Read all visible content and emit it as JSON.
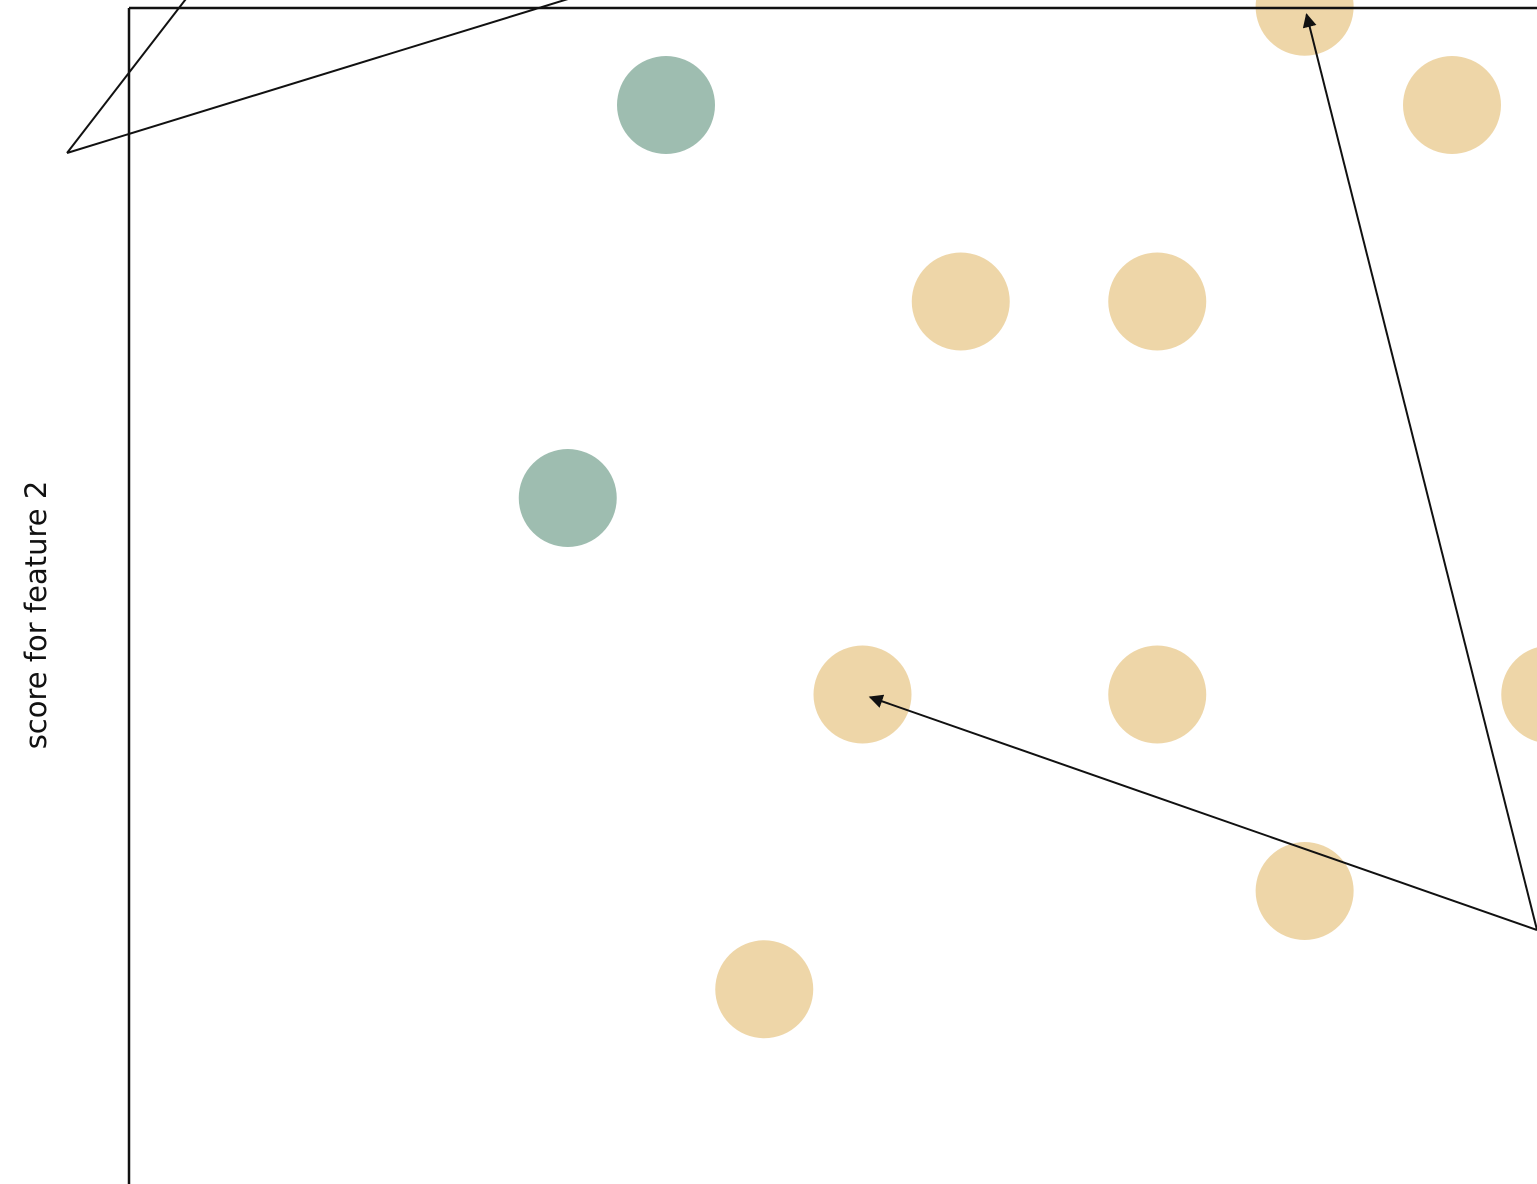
{
  "chart_data": {
    "type": "scatter",
    "title": "",
    "xlabel": "",
    "ylabel": "score for feature 2",
    "grid": false,
    "legend": "none",
    "series": [
      {
        "color": "#9ebdb0",
        "points": [
          [
            3.0,
            10.0
          ],
          [
            1.5,
            9.0
          ],
          [
            4.5,
            9.0
          ],
          [
            2.5,
            8.0
          ],
          [
            1.5,
            7.5
          ],
          [
            3.0,
            6.0
          ],
          [
            3.5,
            7.0
          ],
          [
            2.0,
            5.0
          ],
          [
            1.5,
            3.0
          ]
        ]
      },
      {
        "color": "#eed6a8",
        "points": [
          [
            7.0,
            9.0
          ],
          [
            6.0,
            6.5
          ],
          [
            5.25,
            5.5
          ],
          [
            6.0,
            5.0
          ],
          [
            3.5,
            4.0
          ],
          [
            4.5,
            4.0
          ],
          [
            3.0,
            2.0
          ],
          [
            4.5,
            2.0
          ],
          [
            6.5,
            2.0
          ],
          [
            5.25,
            1.0
          ],
          [
            2.5,
            0.5
          ]
        ]
      }
    ],
    "annotations": [
      {
        "from_side": "left",
        "targets": [
          [
            3.0,
            10.0
          ],
          [
            3.0,
            6.0
          ]
        ]
      },
      {
        "from_side": "right",
        "targets": [
          [
            5.25,
            5.5
          ],
          [
            3.0,
            2.0
          ]
        ]
      }
    ]
  }
}
